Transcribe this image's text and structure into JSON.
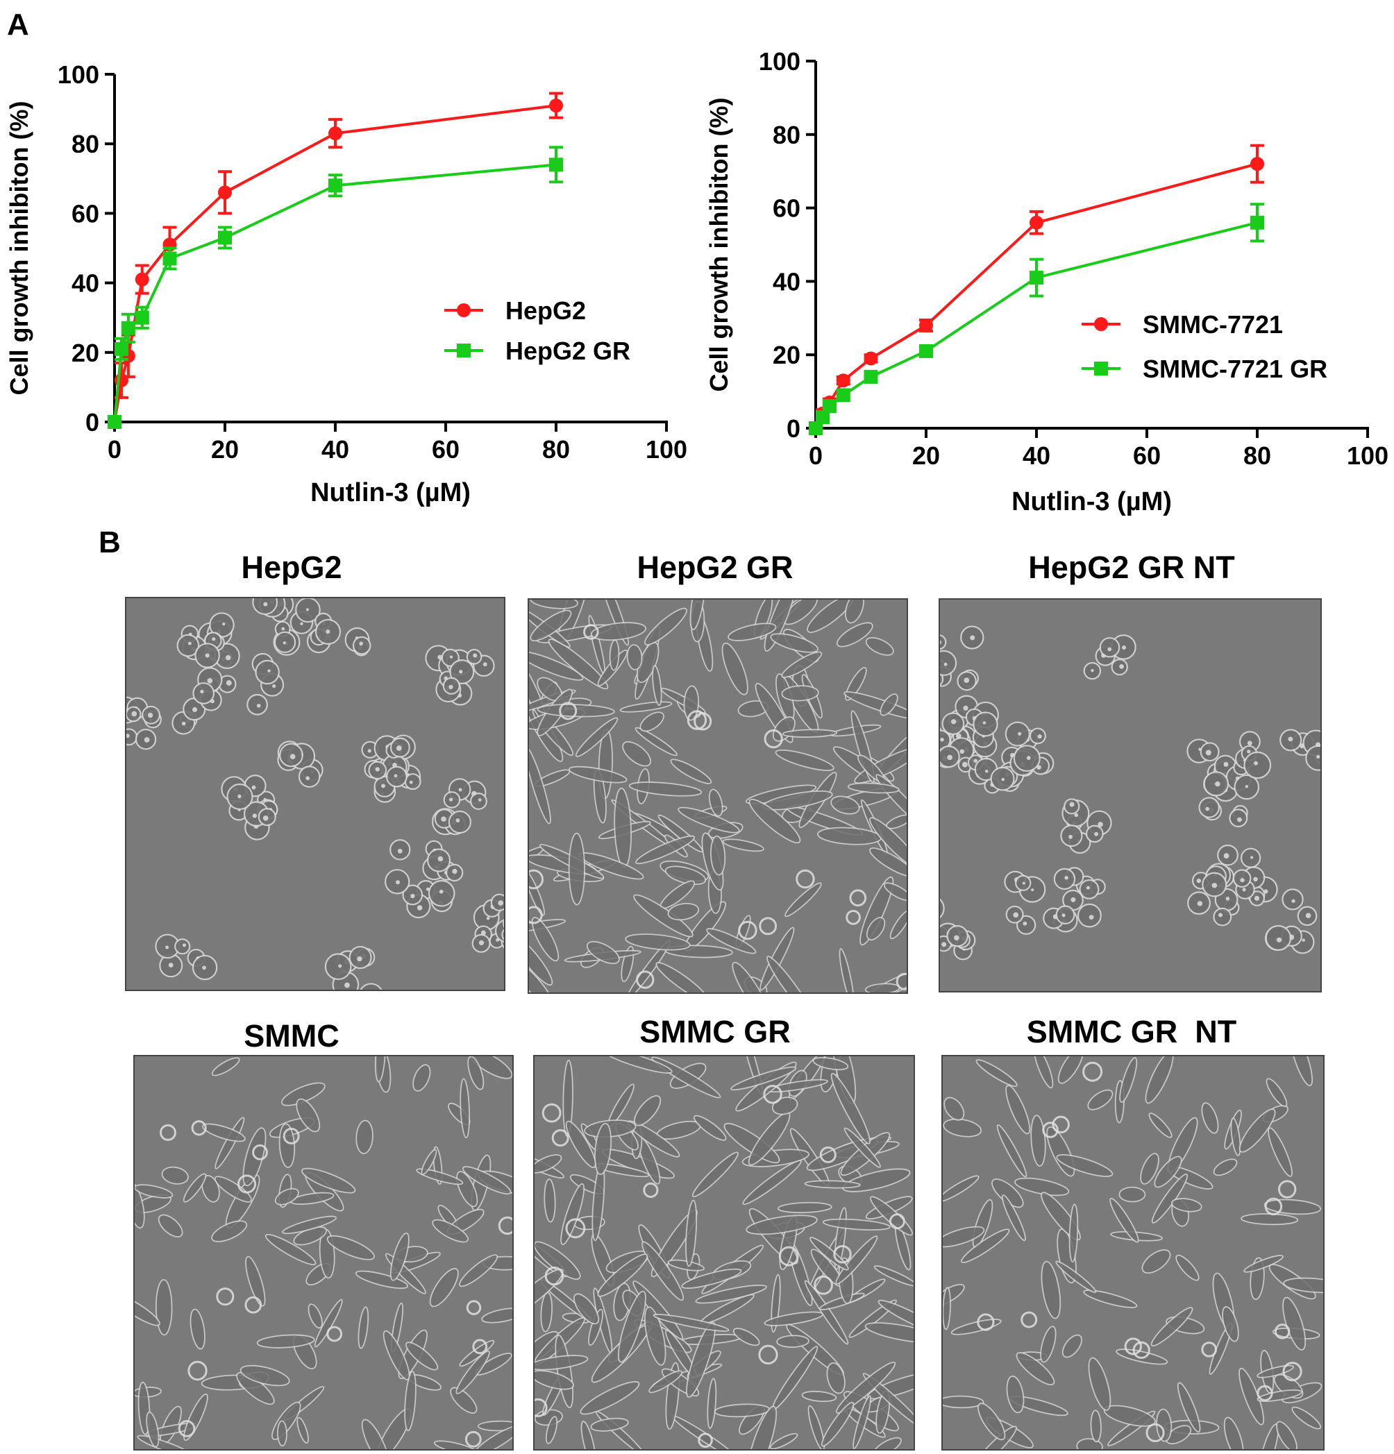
{
  "panel_labels": {
    "a": "A",
    "b": "B"
  },
  "chart_data": [
    {
      "type": "line",
      "title": "",
      "xlabel": "Nutlin-3 (µM)",
      "ylabel": "Cell growth inhibiton (%)",
      "xlim": [
        0,
        100
      ],
      "ylim": [
        0,
        100
      ],
      "xticks": [
        "0",
        "20",
        "40",
        "60",
        "80",
        "100"
      ],
      "yticks": [
        "0",
        "20",
        "40",
        "60",
        "80",
        "100"
      ],
      "legend_position": "center-right",
      "grid": false,
      "series": [
        {
          "name": "HepG2",
          "color": "#ff1a1a",
          "marker": "circle",
          "x": [
            0,
            1.25,
            2.5,
            5,
            10,
            20,
            40,
            80
          ],
          "y": [
            0,
            12,
            19,
            41,
            51,
            66,
            83,
            91
          ],
          "error": [
            1,
            5,
            6,
            4,
            5,
            6,
            4,
            3.5
          ]
        },
        {
          "name": "HepG2 GR",
          "color": "#1acc1a",
          "marker": "square",
          "x": [
            0,
            1.25,
            2.5,
            5,
            10,
            20,
            40,
            80
          ],
          "y": [
            0,
            21,
            27,
            30,
            47,
            53,
            68,
            74
          ],
          "error": [
            1,
            3,
            4,
            3,
            3,
            3,
            3,
            5
          ]
        }
      ]
    },
    {
      "type": "line",
      "title": "",
      "xlabel": "Nutlin-3 (µM)",
      "ylabel": "Cell growth inhibiton (%)",
      "xlim": [
        0,
        100
      ],
      "ylim": [
        0,
        100
      ],
      "xticks": [
        "0",
        "20",
        "40",
        "60",
        "80",
        "100"
      ],
      "yticks": [
        "0",
        "20",
        "40",
        "60",
        "80",
        "100"
      ],
      "legend_position": "center-right",
      "grid": false,
      "series": [
        {
          "name": "SMMC-7721",
          "color": "#ff1a1a",
          "marker": "circle",
          "x": [
            0,
            1.25,
            2.5,
            5,
            10,
            20,
            40,
            80
          ],
          "y": [
            0,
            4,
            7,
            13,
            19,
            28,
            56,
            72
          ],
          "error": [
            1,
            1,
            1,
            1,
            1,
            1.5,
            3,
            5
          ]
        },
        {
          "name": "SMMC-7721 GR",
          "color": "#1acc1a",
          "marker": "square",
          "x": [
            0,
            1.25,
            2.5,
            5,
            10,
            20,
            40,
            80
          ],
          "y": [
            0,
            3,
            6,
            9,
            14,
            21,
            41,
            56
          ],
          "error": [
            1,
            1,
            1,
            1,
            1,
            1,
            5,
            5
          ]
        }
      ]
    }
  ],
  "micrographs": [
    {
      "label": "HepG2",
      "morphology": "clustered"
    },
    {
      "label": "HepG2 GR",
      "morphology": "spindle"
    },
    {
      "label": "HepG2 GR NT",
      "morphology": "clustered"
    },
    {
      "label": "SMMC",
      "morphology": "scattered"
    },
    {
      "label": "SMMC GR",
      "morphology": "spindle"
    },
    {
      "label": "SMMC GR  NT",
      "morphology": "scattered"
    }
  ]
}
